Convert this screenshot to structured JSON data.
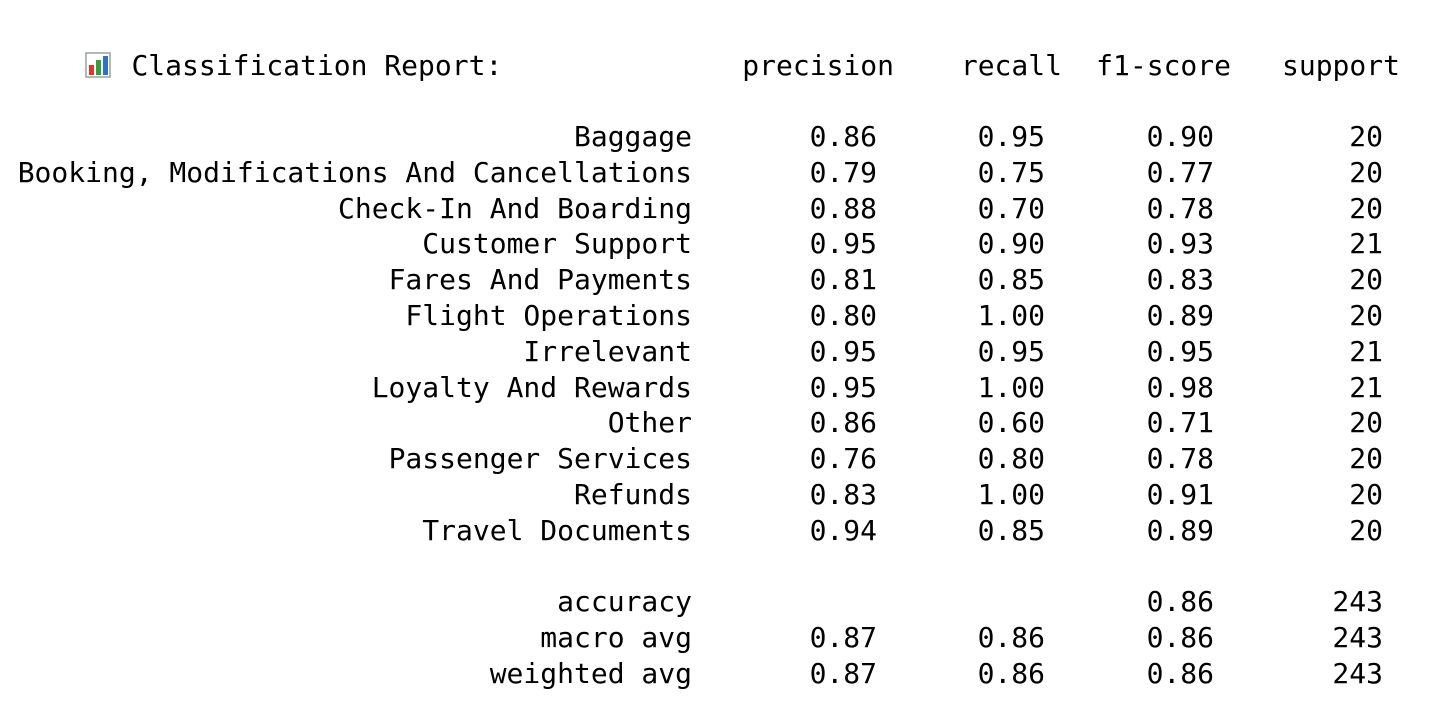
{
  "report": {
    "icon": "bar-chart-icon",
    "title": "Classification Report:",
    "headers": {
      "precision": "precision",
      "recall": "recall",
      "f1": "f1-score",
      "support": "support"
    },
    "rows": [
      {
        "label": "Baggage",
        "precision": "0.86",
        "recall": "0.95",
        "f1": "0.90",
        "support": "20"
      },
      {
        "label": "Booking, Modifications And Cancellations",
        "precision": "0.79",
        "recall": "0.75",
        "f1": "0.77",
        "support": "20"
      },
      {
        "label": "Check-In And Boarding",
        "precision": "0.88",
        "recall": "0.70",
        "f1": "0.78",
        "support": "20"
      },
      {
        "label": "Customer Support",
        "precision": "0.95",
        "recall": "0.90",
        "f1": "0.93",
        "support": "21"
      },
      {
        "label": "Fares And Payments",
        "precision": "0.81",
        "recall": "0.85",
        "f1": "0.83",
        "support": "20"
      },
      {
        "label": "Flight Operations",
        "precision": "0.80",
        "recall": "1.00",
        "f1": "0.89",
        "support": "20"
      },
      {
        "label": "Irrelevant",
        "precision": "0.95",
        "recall": "0.95",
        "f1": "0.95",
        "support": "21"
      },
      {
        "label": "Loyalty And Rewards",
        "precision": "0.95",
        "recall": "1.00",
        "f1": "0.98",
        "support": "21"
      },
      {
        "label": "Other",
        "precision": "0.86",
        "recall": "0.60",
        "f1": "0.71",
        "support": "20"
      },
      {
        "label": "Passenger Services",
        "precision": "0.76",
        "recall": "0.80",
        "f1": "0.78",
        "support": "20"
      },
      {
        "label": "Refunds",
        "precision": "0.83",
        "recall": "1.00",
        "f1": "0.91",
        "support": "20"
      },
      {
        "label": "Travel Documents",
        "precision": "0.94",
        "recall": "0.85",
        "f1": "0.89",
        "support": "20"
      }
    ],
    "summary": [
      {
        "label": "accuracy",
        "precision": "",
        "recall": "",
        "f1": "0.86",
        "support": "243"
      },
      {
        "label": "macro avg",
        "precision": "0.87",
        "recall": "0.86",
        "f1": "0.86",
        "support": "243"
      },
      {
        "label": "weighted avg",
        "precision": "0.87",
        "recall": "0.86",
        "f1": "0.86",
        "support": "243"
      }
    ]
  },
  "colors": {
    "text": "#000000",
    "background": "#ffffff",
    "icon_red": "#d9382c",
    "icon_green": "#3a9c3a",
    "icon_blue": "#2f6fce",
    "icon_frame": "#9aa0a6"
  }
}
